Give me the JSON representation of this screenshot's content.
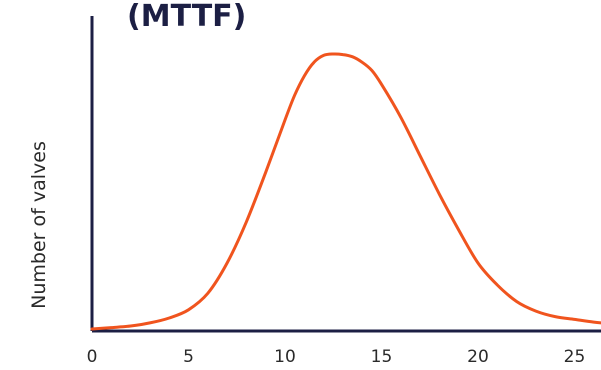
{
  "chart_data": {
    "type": "line",
    "title": "(MTTF)",
    "ylabel": "Number of valves",
    "xlabel": "",
    "xlim": [
      0,
      28
    ],
    "ylim": [
      0,
      1.0
    ],
    "xticks": [
      0,
      5,
      10,
      15,
      20,
      25
    ],
    "grid": false,
    "series": [
      {
        "color": "#f0541e",
        "x": [
          0,
          1,
          2,
          3,
          4,
          5,
          6,
          7,
          8,
          9,
          10,
          10.5,
          11,
          11.5,
          12,
          12.5,
          13,
          13.5,
          14,
          14.5,
          15,
          16,
          17,
          18,
          19,
          20,
          21,
          22,
          23,
          24,
          25,
          26,
          27,
          28
        ],
        "y": [
          0.0,
          0.005,
          0.011,
          0.022,
          0.04,
          0.07,
          0.13,
          0.24,
          0.39,
          0.57,
          0.76,
          0.85,
          0.92,
          0.97,
          0.995,
          1.0,
          0.998,
          0.99,
          0.97,
          0.94,
          0.89,
          0.77,
          0.63,
          0.49,
          0.36,
          0.24,
          0.16,
          0.1,
          0.065,
          0.045,
          0.035,
          0.025,
          0.018,
          0.012
        ]
      }
    ],
    "colors": {
      "axis": "#1c1f44",
      "curve": "#f0541e",
      "text": "#2a2a2a",
      "title": "#1c1f44"
    }
  }
}
